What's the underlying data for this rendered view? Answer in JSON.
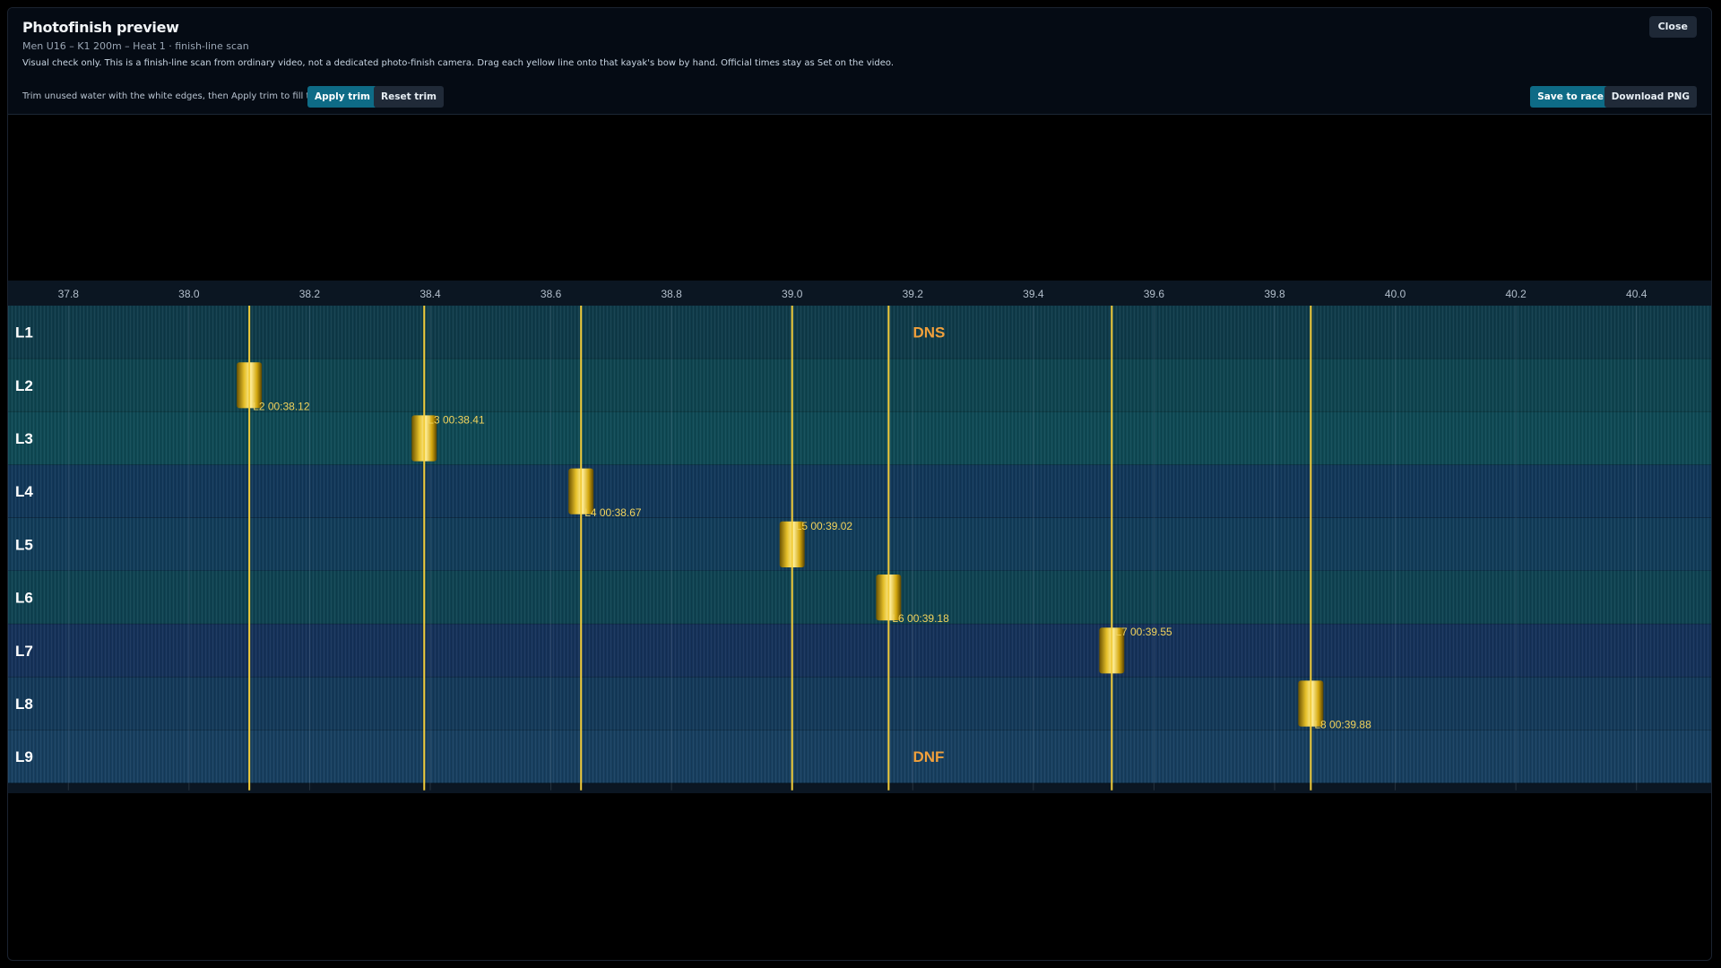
{
  "header": {
    "title": "Photofinish preview",
    "subtitle": "Men U16 – K1 200m – Heat 1 · finish-line scan",
    "notice": "Visual check only. This is a finish-line scan from ordinary video, not a dedicated photo-finish camera. Drag each yellow line onto that kayak's bow by hand. Official times stay as Set on the video.",
    "close_label": "Close"
  },
  "toolbar": {
    "trim_hint": "Trim unused water with the white edges, then Apply trim to fill this view.",
    "apply_trim_label": "Apply trim",
    "reset_trim_label": "Reset trim",
    "save_label": "Save to race",
    "download_label": "Download PNG"
  },
  "colors": {
    "finish_line": "#f2cc3a",
    "status_text": "#f0a03c",
    "primary_button": "#0e6b86"
  },
  "chart_data": {
    "type": "photofinish",
    "x_axis": {
      "min": 37.7,
      "max": 40.5,
      "ticks": [
        37.8,
        38.0,
        38.2,
        38.4,
        38.6,
        38.8,
        39.0,
        39.2,
        39.4,
        39.6,
        39.8,
        40.0,
        40.2,
        40.4
      ],
      "tick_labels": [
        "37.8",
        "38.0",
        "38.2",
        "38.4",
        "38.6",
        "38.8",
        "39.0",
        "39.2",
        "39.4",
        "39.6",
        "39.8",
        "40.0",
        "40.2",
        "40.4"
      ]
    },
    "lanes": [
      {
        "lane": "L1",
        "status": "DNS",
        "status_at": 39.23
      },
      {
        "lane": "L2",
        "finish": 38.1,
        "label": "L2 00:38.12"
      },
      {
        "lane": "L3",
        "finish": 38.39,
        "label": "L3 00:38.41"
      },
      {
        "lane": "L4",
        "finish": 38.65,
        "label": "L4 00:38.67"
      },
      {
        "lane": "L5",
        "finish": 39.0,
        "label": "L5 00:39.02"
      },
      {
        "lane": "L6",
        "finish": 39.16,
        "label": "L6 00:39.18"
      },
      {
        "lane": "L7",
        "finish": 39.53,
        "label": "L7 00:39.55"
      },
      {
        "lane": "L8",
        "finish": 39.86,
        "label": "L8 00:39.88"
      },
      {
        "lane": "L9",
        "status": "DNF",
        "status_at": 39.23
      }
    ]
  }
}
